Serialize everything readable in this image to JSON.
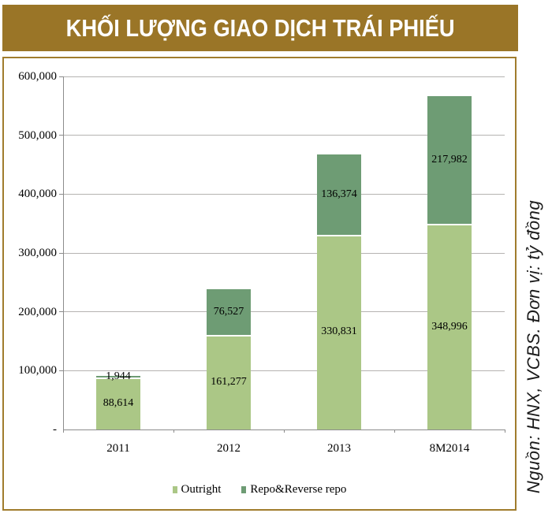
{
  "title": "KHỐI LƯỢNG GIAO DỊCH TRÁI PHIẾU",
  "source_note": "Nguồn: HNX, VCBS. Đơn vị: tỷ đồng",
  "colors": {
    "title_bg": "#9a7527",
    "panel_border": "#a07c2d",
    "outright": "#abc786",
    "repo": "#6e9c74",
    "gridline": "#b5b3b1",
    "axis": "#8c8c8c",
    "text": "#000000"
  },
  "chart_data": {
    "type": "bar",
    "stacked": true,
    "title": "KHỐI LƯỢNG GIAO DỊCH TRÁI PHIẾU",
    "categories": [
      "2011",
      "2012",
      "2013",
      "8M2014"
    ],
    "series": [
      {
        "name": "Outright",
        "color": "#abc786",
        "values": [
          88614,
          161277,
          330831,
          348996
        ],
        "labels": [
          "88,614",
          "161,277",
          "330,831",
          "348,996"
        ]
      },
      {
        "name": "Repo&Reverse repo",
        "color": "#6e9c74",
        "values": [
          1944,
          76527,
          136374,
          217982
        ],
        "labels": [
          "1,944",
          "76,527",
          "136,374",
          "217,982"
        ]
      }
    ],
    "xlabel": "",
    "ylabel": "",
    "ylim": [
      0,
      600000
    ],
    "ytick_interval": 100000,
    "ytick_labels": [
      "-",
      "100,000",
      "200,000",
      "300,000",
      "400,000",
      "500,000",
      "600,000"
    ],
    "grid": true,
    "legend_position": "bottom",
    "unit_note": "Đơn vị: tỷ đồng",
    "source": "HNX, VCBS"
  }
}
